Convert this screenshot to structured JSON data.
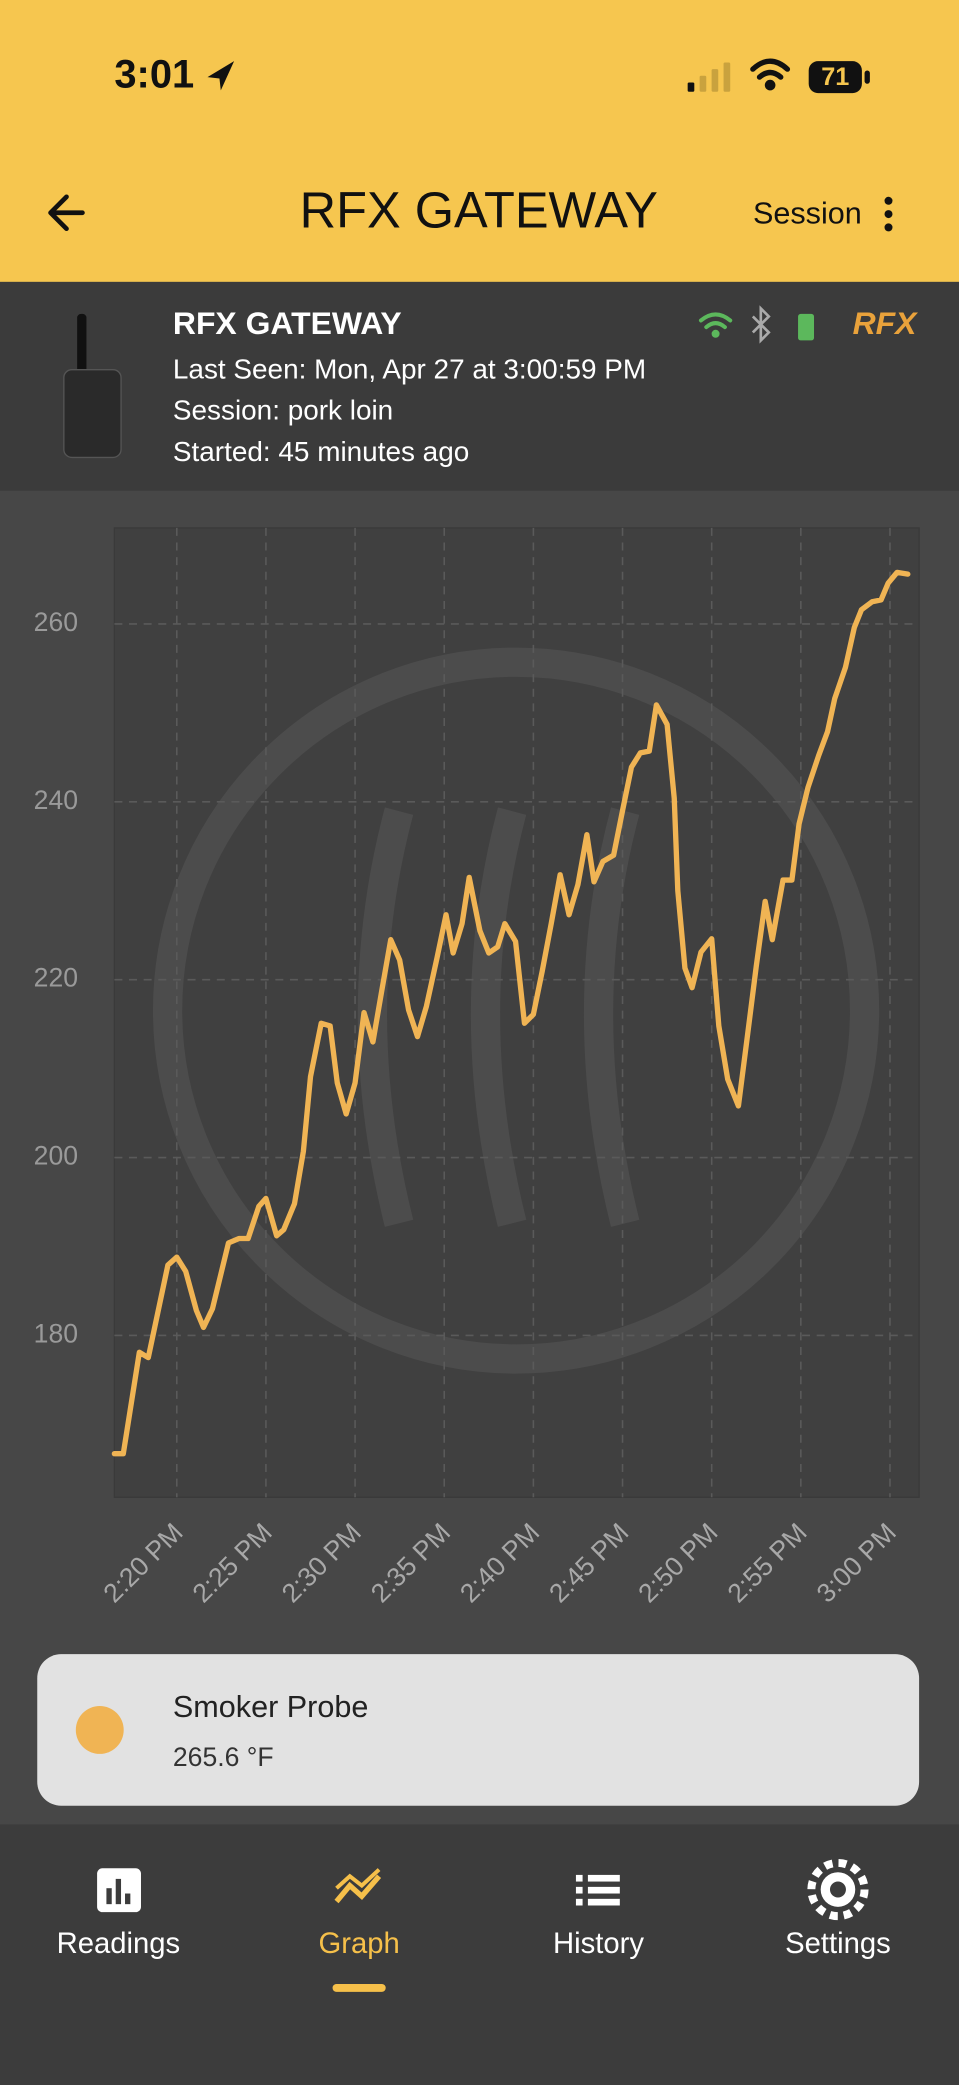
{
  "status_bar": {
    "time": "3:01",
    "battery": "71"
  },
  "header": {
    "title": "RFX GATEWAY",
    "action": "Session"
  },
  "device": {
    "name": "RFX GATEWAY",
    "last_seen": "Last Seen: Mon, Apr 27 at 3:00:59 PM",
    "session": "Session: pork loin",
    "started": "Started: 45 minutes ago",
    "brand": "RFX"
  },
  "chart_data": {
    "type": "line",
    "x": [
      "14:16:30",
      "14:17:00",
      "14:17:54",
      "14:18:24",
      "14:19:30",
      "14:20:00",
      "14:20:30",
      "14:21:06",
      "14:21:30",
      "14:22:00",
      "14:22:54",
      "14:23:30",
      "14:24:00",
      "14:24:36",
      "14:25:00",
      "14:25:36",
      "14:26:00",
      "14:26:36",
      "14:27:06",
      "14:27:30",
      "14:28:06",
      "14:28:36",
      "14:29:00",
      "14:29:30",
      "14:30:00",
      "14:30:30",
      "14:31:00",
      "14:31:30",
      "14:32:00",
      "14:32:30",
      "14:33:00",
      "14:33:30",
      "14:34:00",
      "14:34:36",
      "14:35:06",
      "14:35:30",
      "14:36:00",
      "14:36:24",
      "14:37:00",
      "14:37:30",
      "14:38:00",
      "14:38:24",
      "14:39:00",
      "14:39:30",
      "14:40:00",
      "14:40:30",
      "14:41:00",
      "14:41:30",
      "14:42:00",
      "14:42:30",
      "14:43:00",
      "14:43:24",
      "14:43:54",
      "14:44:30",
      "14:45:00",
      "14:45:30",
      "14:46:00",
      "14:46:30",
      "14:46:54",
      "14:47:30",
      "14:47:54",
      "14:48:06",
      "14:48:30",
      "14:48:54",
      "14:49:24",
      "14:50:00",
      "14:50:24",
      "14:50:54",
      "14:51:30",
      "14:52:00",
      "14:52:30",
      "14:53:00",
      "14:53:24",
      "14:54:00",
      "14:54:30",
      "14:54:54",
      "14:55:24",
      "14:56:00",
      "14:56:30",
      "14:56:54",
      "14:57:30",
      "14:58:00",
      "14:58:24",
      "14:59:00",
      "14:59:30",
      "14:59:54",
      "15:00:24",
      "15:01:00"
    ],
    "series": [
      {
        "name": "Smoker Probe",
        "color": "#f0b454",
        "values": [
          166.7,
          166.7,
          178.1,
          177.5,
          187.9,
          188.8,
          187.2,
          182.8,
          180.9,
          183.0,
          190.4,
          190.9,
          190.9,
          194.5,
          195.4,
          191.2,
          191.9,
          194.8,
          200.7,
          209.1,
          215.1,
          214.8,
          208.4,
          204.9,
          208.4,
          216.3,
          213.0,
          218.8,
          224.5,
          222.2,
          216.6,
          213.6,
          217.0,
          222.5,
          227.3,
          223.0,
          226.3,
          231.5,
          225.5,
          223.0,
          223.7,
          226.3,
          224.3,
          215.1,
          216.1,
          221.0,
          226.3,
          231.8,
          227.3,
          230.7,
          236.3,
          231.0,
          233.3,
          234.0,
          239.0,
          243.9,
          245.5,
          245.7,
          250.9,
          248.7,
          240.4,
          230.0,
          221.3,
          219.1,
          223.1,
          224.6,
          214.8,
          208.8,
          205.8,
          213.6,
          221.5,
          228.8,
          224.5,
          231.2,
          231.2,
          237.5,
          241.6,
          245.2,
          247.9,
          251.6,
          255.1,
          259.6,
          261.6,
          262.5,
          262.7,
          264.6,
          265.8,
          265.6
        ]
      }
    ],
    "xlim": [
      "14:16:30",
      "15:01:38"
    ],
    "ylim": [
      161.8,
      270.8
    ],
    "yticks": [
      180,
      200,
      220,
      240,
      260
    ],
    "xticks": [
      {
        "value": "14:20:00",
        "label": "2:20 PM"
      },
      {
        "value": "14:25:00",
        "label": "2:25 PM"
      },
      {
        "value": "14:30:00",
        "label": "2:30 PM"
      },
      {
        "value": "14:35:00",
        "label": "2:35 PM"
      },
      {
        "value": "14:40:00",
        "label": "2:40 PM"
      },
      {
        "value": "14:45:00",
        "label": "2:45 PM"
      },
      {
        "value": "14:50:00",
        "label": "2:50 PM"
      },
      {
        "value": "14:55:00",
        "label": "2:55 PM"
      },
      {
        "value": "15:00:00",
        "label": "3:00 PM"
      }
    ],
    "grid": true,
    "reading": "265.6 °F"
  },
  "nav": {
    "tabs": [
      "Readings",
      "Graph",
      "History",
      "Settings"
    ],
    "active": 1
  }
}
